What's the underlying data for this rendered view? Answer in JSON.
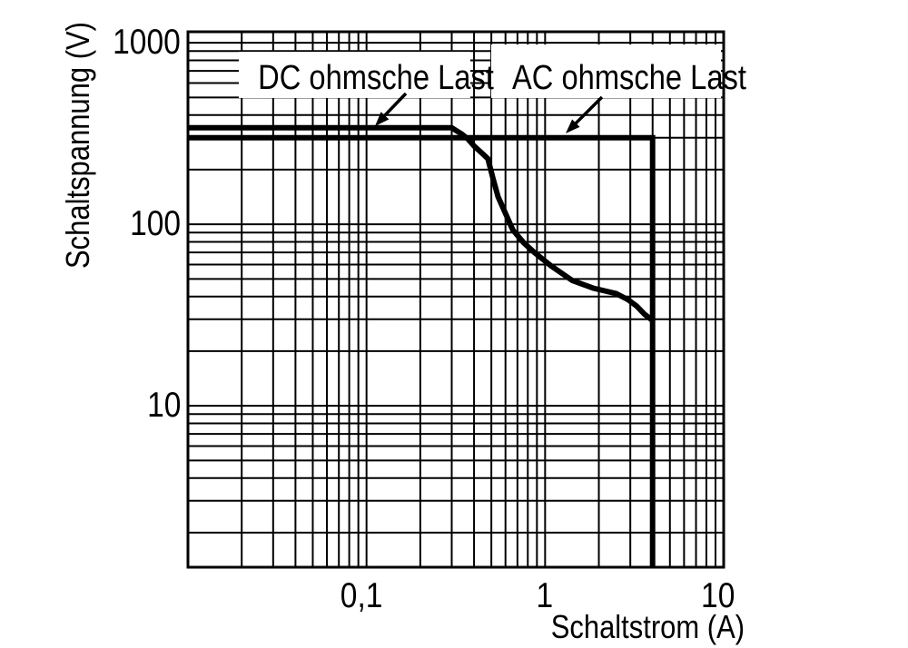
{
  "figure": {
    "background_color": "#ffffff",
    "ink_color": "#000000",
    "description": "Relay load limit curves: switching voltage vs switching current, log-log grid"
  },
  "chart_data": {
    "type": "line",
    "title": "",
    "xlabel": "Schaltstrom (A)",
    "ylabel": "Schaltspannung (V)",
    "x_scale": "log",
    "y_scale": "log",
    "xlim": [
      0.01,
      10
    ],
    "ylim": [
      1.29,
      1150
    ],
    "grid": "full log-log minor grid, black on white",
    "legend_position": "inside top, white label boxes with arrows pointing to curves",
    "x_ticks": [
      {
        "value": 0.1,
        "label": "0,1"
      },
      {
        "value": 1,
        "label": "1"
      },
      {
        "value": 10,
        "label": "10"
      }
    ],
    "y_ticks": [
      {
        "value": 10,
        "label": "10"
      },
      {
        "value": 100,
        "label": "100"
      },
      {
        "value": 1000,
        "label": "1000"
      }
    ],
    "series": [
      {
        "name": "DC ohmsche Last",
        "color": "#000000",
        "points": [
          [
            0.01,
            340
          ],
          [
            0.3,
            340
          ],
          [
            0.34,
            315
          ],
          [
            0.37,
            295
          ],
          [
            0.4,
            270
          ],
          [
            0.44,
            248
          ],
          [
            0.478,
            230
          ],
          [
            0.51,
            180
          ],
          [
            0.545,
            142
          ],
          [
            0.59,
            119
          ],
          [
            0.66,
            93
          ],
          [
            0.76,
            79
          ],
          [
            0.87,
            70
          ],
          [
            1.08,
            59
          ],
          [
            1.42,
            49
          ],
          [
            1.86,
            44.5
          ],
          [
            2.5,
            41.5
          ],
          [
            2.9,
            38.5
          ],
          [
            3.25,
            35.5
          ],
          [
            3.6,
            32
          ],
          [
            4.0,
            29.5
          ]
        ]
      },
      {
        "name": "AC ohmsche Last",
        "color": "#000000",
        "points": [
          [
            0.01,
            300
          ],
          [
            4.0,
            300
          ],
          [
            4.0,
            1.29
          ]
        ]
      }
    ]
  }
}
